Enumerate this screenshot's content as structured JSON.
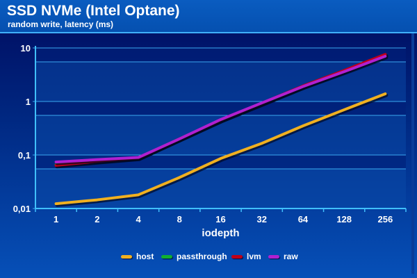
{
  "chart_data": {
    "type": "line",
    "title": "SSD NVMe (Intel Optane)",
    "subtitle": "random write, latency (ms)",
    "xlabel": "iodepth",
    "ylabel": "",
    "yscale": "log",
    "ylim": [
      0.01,
      10
    ],
    "ytick_labels": [
      "10",
      "1",
      "0,1",
      "0,01"
    ],
    "yticks": [
      10,
      1,
      0.1,
      0.01
    ],
    "categories": [
      "1",
      "2",
      "4",
      "8",
      "16",
      "32",
      "64",
      "128",
      "256"
    ],
    "series": [
      {
        "name": "host",
        "color": "#f0b020",
        "values": [
          0.0123,
          0.0145,
          0.018,
          0.038,
          0.086,
          0.165,
          0.35,
          0.7,
          1.39
        ]
      },
      {
        "name": "passthrough",
        "color": "#10b030",
        "values": [
          0.066,
          0.077,
          0.089,
          0.2,
          0.45,
          0.92,
          1.9,
          3.7,
          7.4
        ]
      },
      {
        "name": "lvm",
        "color": "#c00018",
        "values": [
          0.064,
          0.076,
          0.088,
          0.2,
          0.45,
          0.93,
          1.95,
          3.8,
          7.6
        ]
      },
      {
        "name": "raw",
        "color": "#b020d0",
        "values": [
          0.074,
          0.082,
          0.09,
          0.2,
          0.46,
          0.94,
          1.9,
          3.6,
          7.0
        ]
      }
    ],
    "grid": true,
    "legend_position": "bottom-center"
  }
}
